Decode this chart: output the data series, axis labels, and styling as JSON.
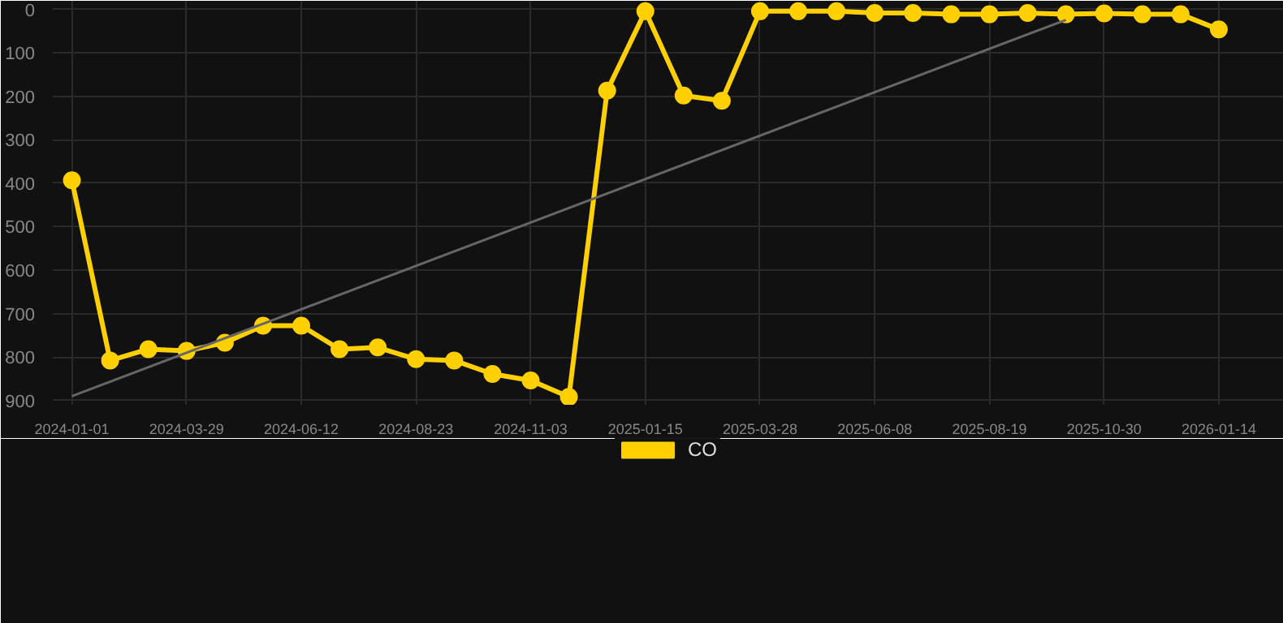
{
  "chart_data": {
    "type": "line",
    "categories": [
      "2024-01-01",
      null,
      null,
      "2024-03-29",
      null,
      null,
      "2024-06-12",
      null,
      null,
      "2024-08-23",
      null,
      null,
      "2024-11-03",
      null,
      null,
      "2025-01-15",
      null,
      null,
      "2025-03-28",
      null,
      null,
      "2025-06-08",
      null,
      null,
      "2025-08-19",
      null,
      null,
      "2025-10-30",
      null,
      null,
      "2026-01-14"
    ],
    "series": [
      {
        "name": "CO",
        "color": "#ffd000",
        "marker": "circle",
        "values": [
          393,
          808,
          782,
          786,
          767,
          728,
          728,
          782,
          778,
          805,
          808,
          839,
          854,
          892,
          187,
          4,
          198,
          210,
          4,
          4,
          4,
          8,
          8,
          11,
          11,
          8,
          11,
          9,
          11,
          11,
          46
        ]
      },
      {
        "type": "line",
        "color": "#666666",
        "marker": "none",
        "values": [
          890,
          null,
          null,
          null,
          null,
          null,
          null,
          null,
          null,
          null,
          null,
          null,
          null,
          null,
          null,
          null,
          null,
          null,
          null,
          null,
          null,
          null,
          null,
          null,
          null,
          null,
          24,
          null,
          null,
          null,
          null
        ]
      }
    ],
    "ylim": [
      910,
      -20
    ],
    "yticks": [
      0,
      100,
      200,
      300,
      400,
      500,
      600,
      700,
      800,
      900
    ],
    "grid": true,
    "legend": "bottom"
  }
}
